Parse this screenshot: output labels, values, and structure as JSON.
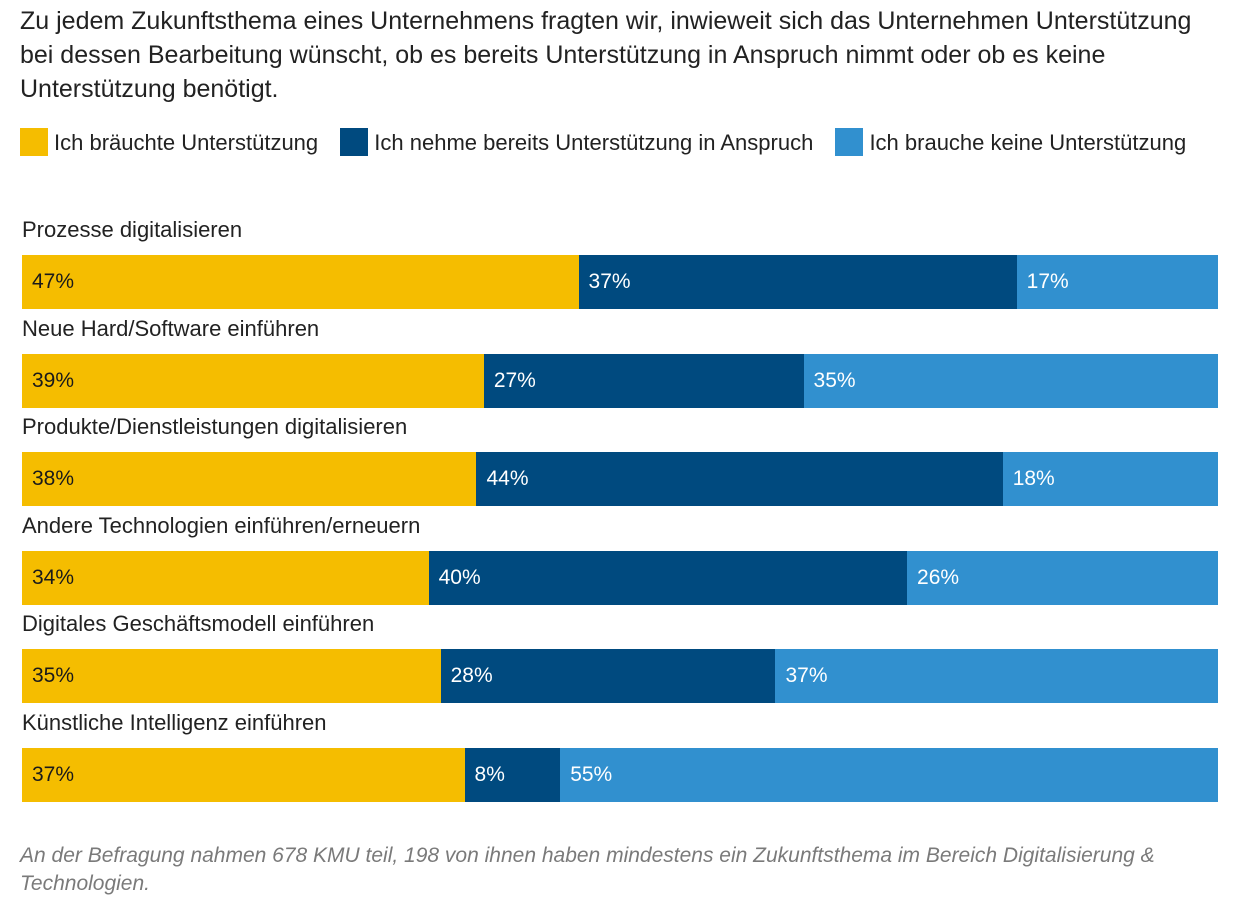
{
  "subtitle": "Zu jedem Zukunftsthema eines Unternehmens fragten wir, inwieweit sich das Unternehmen Unterstützung bei dessen Bearbeitung wünscht, ob es bereits Unterstützung in Anspruch nimmt oder ob es keine Unterstützung benötigt.",
  "note": "An der Befragung nahmen 678 KMU teil, 198 von ihnen haben mindestens ein Zukunftsthema im Bereich Digitalisierung & Technologien.",
  "chart_data": {
    "type": "bar",
    "orientation": "horizontal",
    "stacked": true,
    "title": "",
    "categories": [
      "Prozesse digitalisieren",
      "Neue Hard/Software einführen",
      "Produkte/Dienstleistungen digitalisieren",
      "Andere Technologien einführen/erneuern",
      "Digitales Geschäftsmodell einführen",
      "Künstliche Intelligenz einführen"
    ],
    "series": [
      {
        "name": "Ich bräuchte Unterstützung",
        "color": "#f5bd00",
        "label_color": "#1a1a1a",
        "values": [
          47,
          39,
          38,
          34,
          35,
          37
        ]
      },
      {
        "name": "Ich nehme bereits Unterstützung in Anspruch",
        "color": "#004a7f",
        "label_color": "#ffffff",
        "values": [
          37,
          27,
          44,
          40,
          28,
          8
        ]
      },
      {
        "name": "Ich brauche keine Unterstützung",
        "color": "#3190cf",
        "label_color": "#ffffff",
        "values": [
          17,
          35,
          18,
          26,
          37,
          55
        ]
      }
    ],
    "value_suffix": "%",
    "legend_position": "top",
    "grid": false
  }
}
